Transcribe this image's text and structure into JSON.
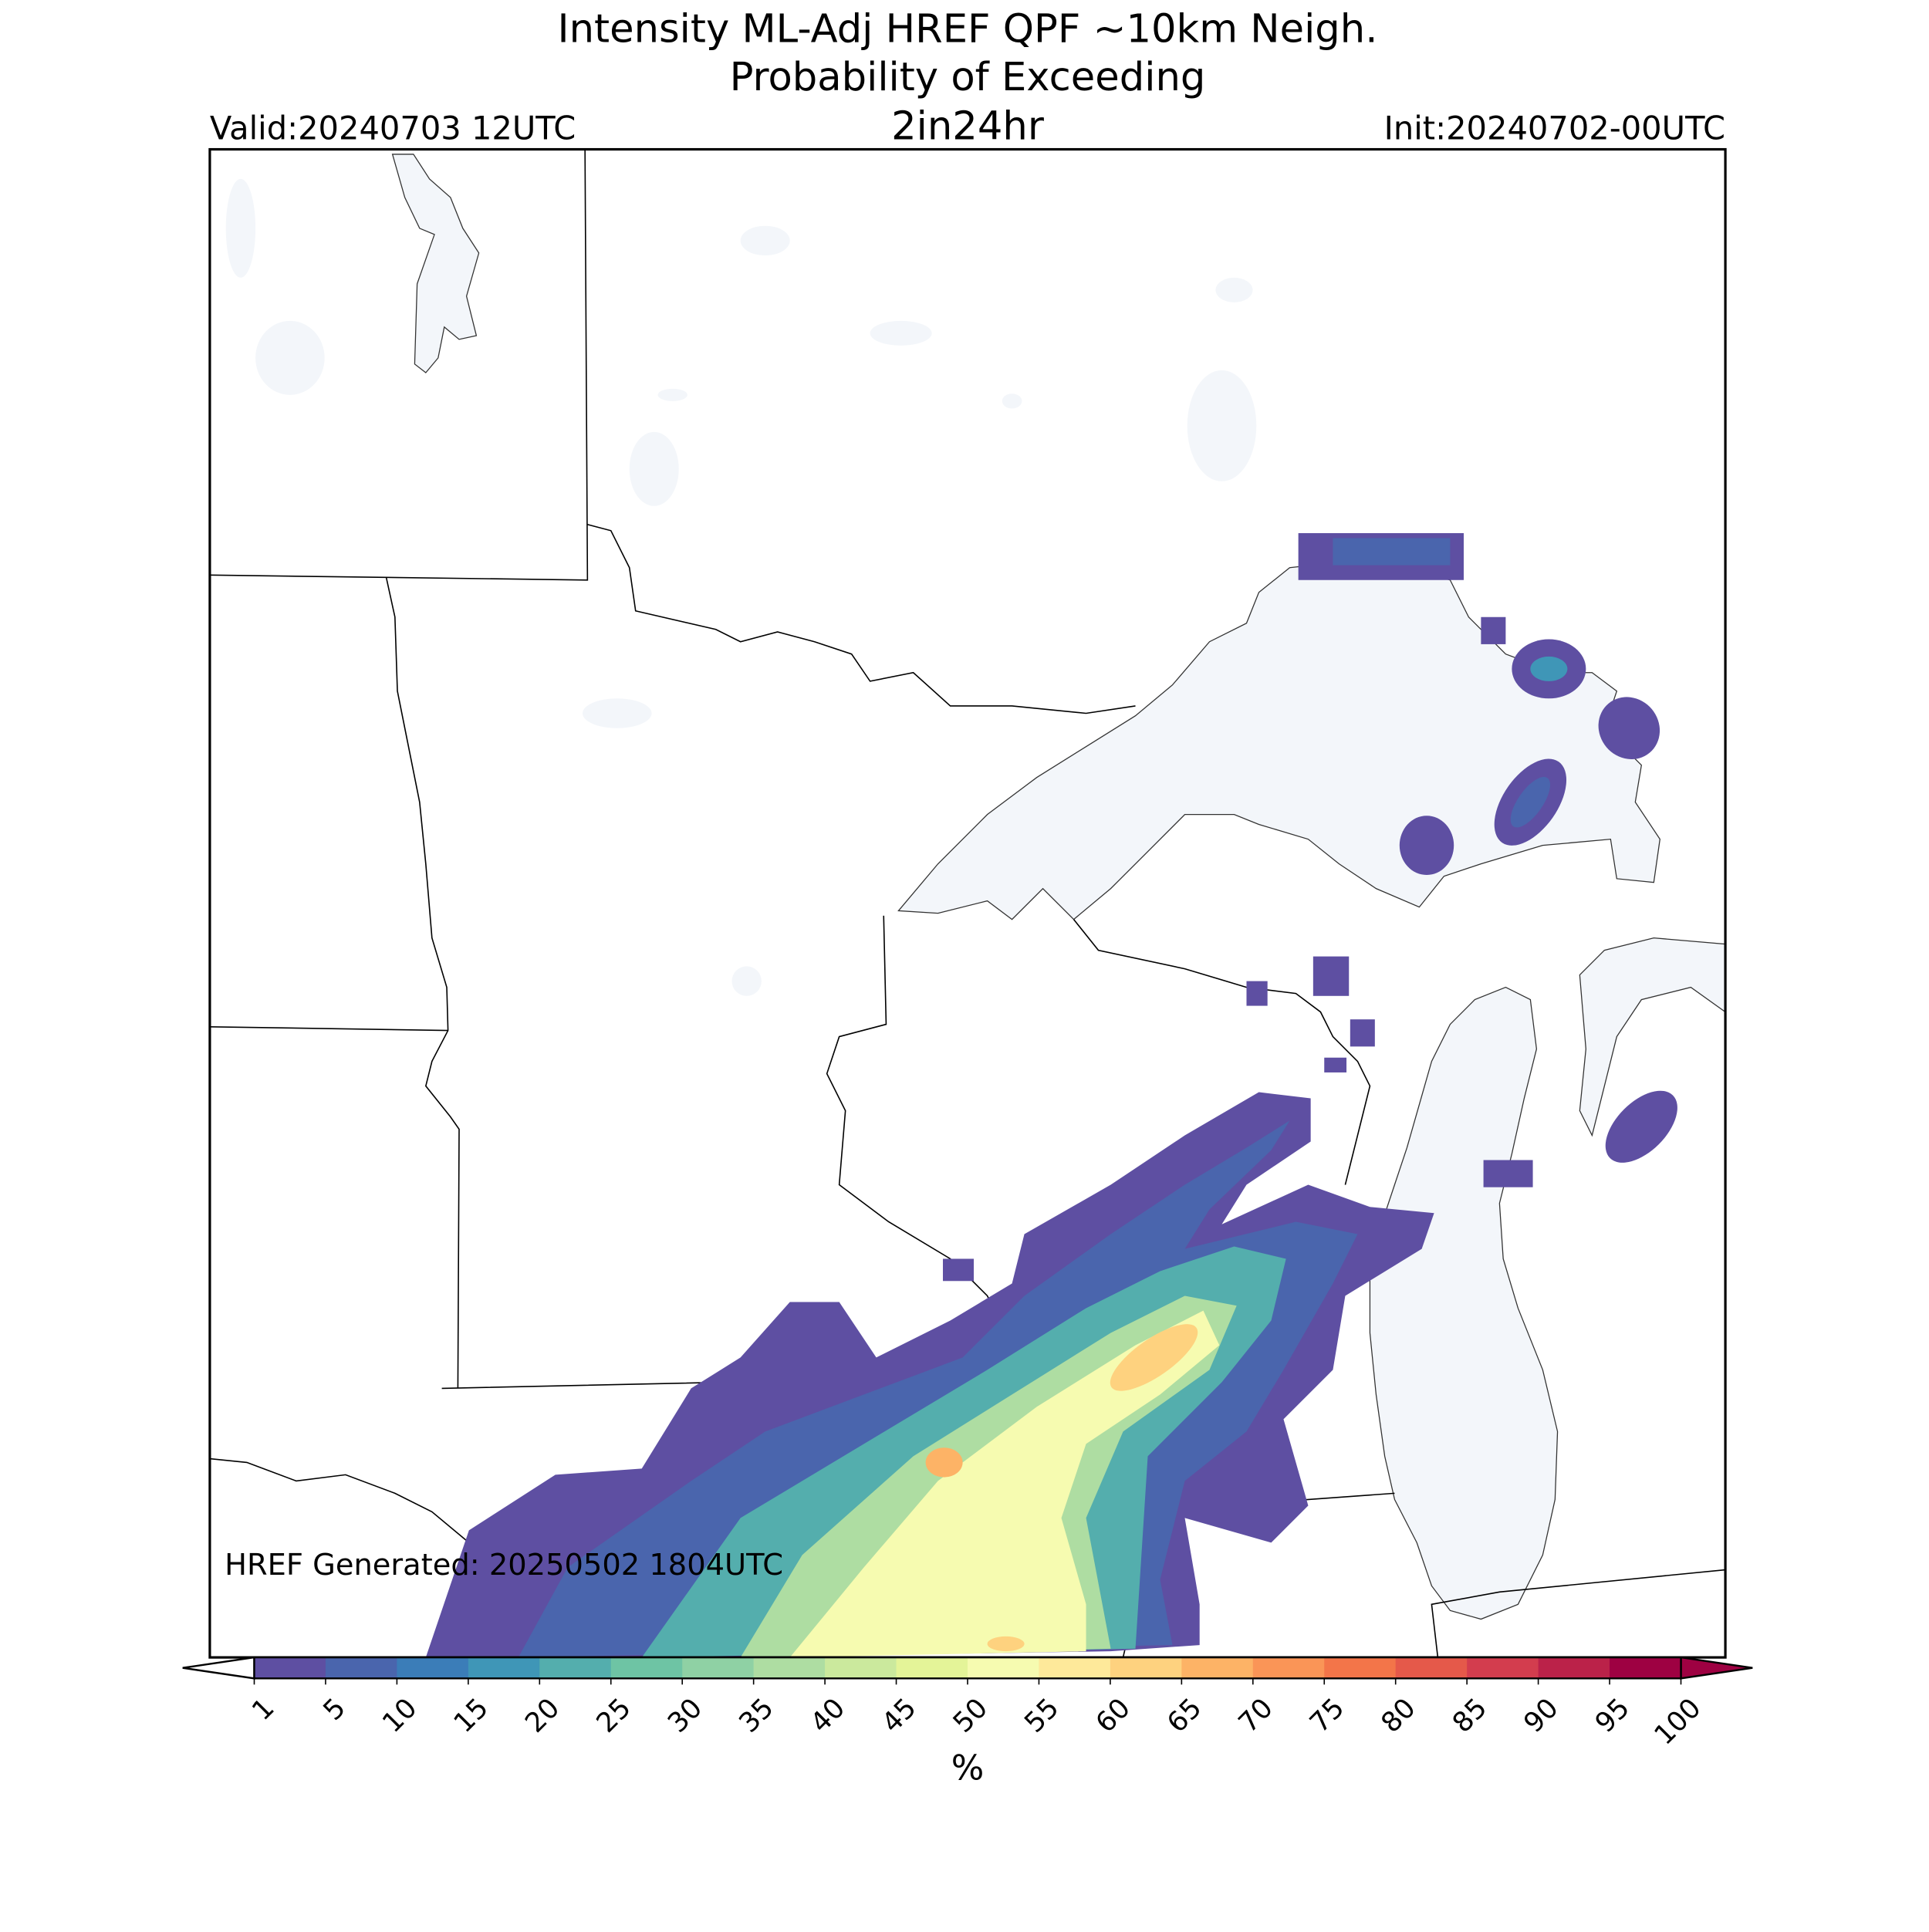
{
  "chart_data": {
    "type": "probability-map",
    "title": "Intensity ML-Adj HREF QPF ~10km Neigh.",
    "subtitle": "Probability of Exceeding",
    "threshold": "2in24hr",
    "valid": "Valid:20240703 12UTC",
    "init": "Init:20240702-00UTC",
    "generated": "HREF Generated: 20250502 1804UTC",
    "colorbar": {
      "label": "%",
      "ticks": [
        1,
        5,
        10,
        15,
        20,
        25,
        30,
        35,
        40,
        45,
        50,
        55,
        60,
        65,
        70,
        75,
        80,
        85,
        90,
        95,
        100
      ],
      "colors": [
        "#5e4fa2",
        "#4a65ad",
        "#3b7db8",
        "#3f96b7",
        "#54aead",
        "#6ec4a4",
        "#8fd1a4",
        "#aedda2",
        "#cbe99d",
        "#e4f498",
        "#f6fbb0",
        "#fee99a",
        "#fed27f",
        "#fdb366",
        "#fa9557",
        "#f37549",
        "#e5594a",
        "#d33d4e",
        "#bb2249",
        "#9e0142"
      ],
      "under_color": "#ffffff",
      "over_color": "#9e0142"
    }
  }
}
